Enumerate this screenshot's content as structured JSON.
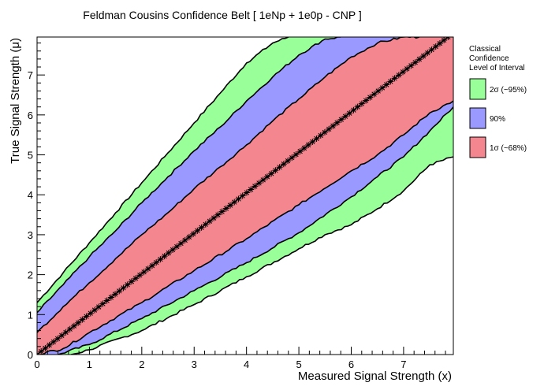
{
  "chart_data": {
    "type": "area",
    "title": "Feldman Cousins Confidence Belt [ 1eNp + 1e0p - CNP ]",
    "xlabel": "Measured Signal Strength (x)",
    "ylabel": "True Signal Strength (μ)",
    "xlim": [
      0,
      7.95
    ],
    "ylim": [
      0,
      7.95
    ],
    "xticks": [
      "0",
      "1",
      "2",
      "3",
      "4",
      "5",
      "6",
      "7"
    ],
    "yticks": [
      "0",
      "1",
      "2",
      "3",
      "4",
      "5",
      "6",
      "7"
    ],
    "grid": false,
    "legend_position": "right",
    "legend": {
      "title_lines": [
        "Classical",
        "Confidence",
        "Level of Interval"
      ],
      "entries": [
        {
          "label": "2σ (~95%)",
          "color": "#99ff99"
        },
        {
          "label": "90%",
          "color": "#9999ff"
        },
        {
          "label": "1σ (~68%)",
          "color": "#f4868f"
        }
      ]
    },
    "bands": [
      {
        "name": "2σ (~95%)",
        "color": "#99ff99",
        "upper": {
          "x": [
            0.0,
            0.5,
            1.0,
            1.5,
            2.0,
            2.5,
            3.0,
            3.5,
            4.0,
            4.5,
            4.8
          ],
          "y": [
            1.3,
            2.05,
            2.8,
            3.55,
            4.3,
            5.05,
            5.8,
            6.55,
            7.3,
            7.8,
            7.95
          ]
        },
        "lower": {
          "x": [
            0.65,
            1.0,
            2.0,
            3.0,
            4.0,
            5.0,
            5.5,
            6.0,
            6.5,
            7.0,
            7.5,
            7.95
          ],
          "y": [
            0.0,
            0.12,
            0.6,
            1.25,
            1.95,
            2.65,
            3.0,
            3.25,
            3.65,
            4.1,
            4.75,
            4.95
          ]
        }
      },
      {
        "name": "90%",
        "color": "#9999ff",
        "upper": {
          "x": [
            0.0,
            0.5,
            1.0,
            1.5,
            2.0,
            2.5,
            3.0,
            3.5,
            4.0,
            4.5,
            5.0,
            5.5,
            5.8
          ],
          "y": [
            1.05,
            1.75,
            2.45,
            3.1,
            3.8,
            4.45,
            5.1,
            5.7,
            6.35,
            6.95,
            7.5,
            7.9,
            7.95
          ]
        },
        "lower": {
          "x": [
            0.4,
            1.0,
            2.0,
            3.0,
            4.0,
            5.0,
            6.0,
            6.5,
            7.0,
            7.5,
            7.95
          ],
          "y": [
            0.0,
            0.25,
            0.9,
            1.6,
            2.3,
            3.05,
            3.95,
            4.45,
            4.95,
            5.6,
            6.2
          ]
        }
      },
      {
        "name": "1σ (~68%)",
        "color": "#f4868f",
        "upper": {
          "x": [
            0.0,
            0.5,
            1.0,
            1.5,
            2.0,
            2.5,
            3.0,
            3.5,
            4.0,
            4.5,
            5.0,
            5.5,
            6.0,
            6.5,
            7.0,
            7.3
          ],
          "y": [
            0.55,
            1.2,
            1.8,
            2.4,
            3.0,
            3.55,
            4.15,
            4.7,
            5.25,
            5.85,
            6.4,
            6.95,
            7.45,
            7.8,
            7.95,
            7.95
          ]
        },
        "lower": {
          "x": [
            0.0,
            0.5,
            1.0,
            2.0,
            3.0,
            4.0,
            5.0,
            6.0,
            6.5,
            7.0,
            7.5,
            7.95
          ],
          "y": [
            0.0,
            0.15,
            0.55,
            1.3,
            2.1,
            2.9,
            3.75,
            4.6,
            5.0,
            5.5,
            6.05,
            6.35
          ]
        }
      }
    ],
    "central_line": {
      "x": [
        0.0,
        7.85
      ],
      "y": [
        0.0,
        7.95
      ],
      "marker": "star"
    }
  }
}
